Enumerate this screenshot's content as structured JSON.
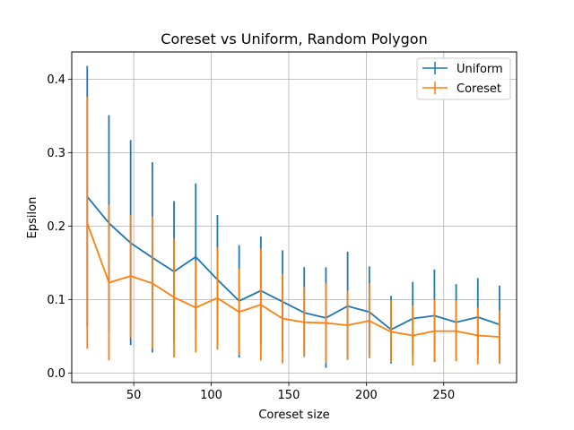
{
  "chart_data": {
    "type": "line",
    "title": "Coreset vs Uniform, Random Polygon",
    "xlabel": "Coreset size",
    "ylabel": "Epsilon",
    "xlim": [
      10,
      297
    ],
    "ylim": [
      -0.013,
      0.437
    ],
    "xticks": [
      50,
      100,
      150,
      200,
      250
    ],
    "yticks": [
      0.0,
      0.1,
      0.2,
      0.3,
      0.4
    ],
    "xtick_labels": [
      "50",
      "100",
      "150",
      "200",
      "250"
    ],
    "ytick_labels": [
      "0.0",
      "0.1",
      "0.2",
      "0.3",
      "0.4"
    ],
    "grid": true,
    "legend_position": "top-right",
    "x": [
      20,
      34,
      48,
      62,
      76,
      90,
      104,
      118,
      132,
      146,
      160,
      174,
      188,
      202,
      216,
      230,
      244,
      258,
      272,
      286
    ],
    "series": [
      {
        "name": "Uniform",
        "color": "#1f77b4",
        "y": [
          0.24,
          0.204,
          0.177,
          0.157,
          0.138,
          0.158,
          0.127,
          0.098,
          0.112,
          0.097,
          0.082,
          0.075,
          0.091,
          0.083,
          0.059,
          0.074,
          0.078,
          0.069,
          0.076,
          0.066
        ],
        "ylow": [
          0.063,
          0.057,
          0.038,
          0.028,
          0.043,
          0.058,
          0.038,
          0.021,
          0.038,
          0.028,
          0.022,
          0.007,
          0.018,
          0.022,
          0.013,
          0.025,
          0.015,
          0.018,
          0.023,
          0.013
        ],
        "yhigh": [
          0.418,
          0.351,
          0.317,
          0.287,
          0.234,
          0.258,
          0.215,
          0.174,
          0.186,
          0.167,
          0.144,
          0.144,
          0.165,
          0.145,
          0.105,
          0.124,
          0.141,
          0.121,
          0.129,
          0.119
        ]
      },
      {
        "name": "Coreset",
        "color": "#ff7f0e",
        "y": [
          0.204,
          0.123,
          0.132,
          0.122,
          0.103,
          0.089,
          0.102,
          0.083,
          0.093,
          0.074,
          0.069,
          0.068,
          0.065,
          0.071,
          0.056,
          0.051,
          0.057,
          0.057,
          0.051,
          0.049
        ],
        "ylow": [
          0.033,
          0.017,
          0.048,
          0.033,
          0.021,
          0.028,
          0.032,
          0.025,
          0.017,
          0.013,
          0.022,
          0.013,
          0.018,
          0.02,
          0.015,
          0.01,
          0.015,
          0.016,
          0.012,
          0.014
        ],
        "yhigh": [
          0.376,
          0.229,
          0.215,
          0.213,
          0.183,
          0.152,
          0.171,
          0.142,
          0.169,
          0.135,
          0.117,
          0.122,
          0.112,
          0.122,
          0.099,
          0.092,
          0.1,
          0.099,
          0.089,
          0.085
        ]
      }
    ]
  }
}
